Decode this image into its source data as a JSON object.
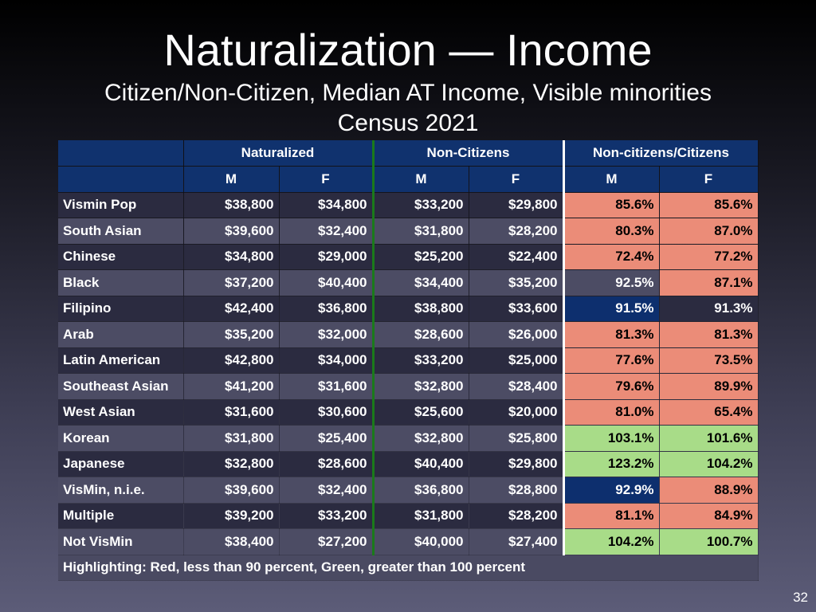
{
  "slide": {
    "title": "Naturalization — Income",
    "subtitle": "Citizen/Non-Citizen, Median AT Income, Visible minorities",
    "census": "Census 2021",
    "page_number": "32"
  },
  "table": {
    "group_headers": [
      "Naturalized",
      "Non-Citizens",
      "Non-citizens/Citizens"
    ],
    "sub_headers": [
      "M",
      "F",
      "M",
      "F",
      "M",
      "F"
    ],
    "rows": [
      {
        "label": "Vismin Pop",
        "nat_m": "$38,800",
        "nat_f": "$34,800",
        "non_m": "$33,200",
        "non_f": "$29,800",
        "ratio_m": "85.6%",
        "ratio_f": "85.6%"
      },
      {
        "label": "South Asian",
        "nat_m": "$39,600",
        "nat_f": "$32,400",
        "non_m": "$31,800",
        "non_f": "$28,200",
        "ratio_m": "80.3%",
        "ratio_f": "87.0%"
      },
      {
        "label": "Chinese",
        "nat_m": "$34,800",
        "nat_f": "$29,000",
        "non_m": "$25,200",
        "non_f": "$22,400",
        "ratio_m": "72.4%",
        "ratio_f": "77.2%"
      },
      {
        "label": "Black",
        "nat_m": "$37,200",
        "nat_f": "$40,400",
        "non_m": "$34,400",
        "non_f": "$35,200",
        "ratio_m": "92.5%",
        "ratio_f": "87.1%"
      },
      {
        "label": "Filipino",
        "nat_m": "$42,400",
        "nat_f": "$36,800",
        "non_m": "$38,800",
        "non_f": "$33,600",
        "ratio_m": "91.5%",
        "ratio_f": "91.3%"
      },
      {
        "label": "Arab",
        "nat_m": "$35,200",
        "nat_f": "$32,000",
        "non_m": "$28,600",
        "non_f": "$26,000",
        "ratio_m": "81.3%",
        "ratio_f": "81.3%"
      },
      {
        "label": "Latin American",
        "nat_m": "$42,800",
        "nat_f": "$34,000",
        "non_m": "$33,200",
        "non_f": "$25,000",
        "ratio_m": "77.6%",
        "ratio_f": "73.5%"
      },
      {
        "label": "Southeast Asian",
        "nat_m": "$41,200",
        "nat_f": "$31,600",
        "non_m": "$32,800",
        "non_f": "$28,400",
        "ratio_m": "79.6%",
        "ratio_f": "89.9%"
      },
      {
        "label": "West Asian",
        "nat_m": "$31,600",
        "nat_f": "$30,600",
        "non_m": "$25,600",
        "non_f": "$20,000",
        "ratio_m": "81.0%",
        "ratio_f": "65.4%"
      },
      {
        "label": "Korean",
        "nat_m": "$31,800",
        "nat_f": "$25,400",
        "non_m": "$32,800",
        "non_f": "$25,800",
        "ratio_m": "103.1%",
        "ratio_f": "101.6%"
      },
      {
        "label": "Japanese",
        "nat_m": "$32,800",
        "nat_f": "$28,600",
        "non_m": "$40,400",
        "non_f": "$29,800",
        "ratio_m": "123.2%",
        "ratio_f": "104.2%"
      },
      {
        "label": "VisMin, n.i.e.",
        "nat_m": "$39,600",
        "nat_f": "$32,400",
        "non_m": "$36,800",
        "non_f": "$28,800",
        "ratio_m": "92.9%",
        "ratio_f": "88.9%"
      },
      {
        "label": "Multiple",
        "nat_m": "$39,200",
        "nat_f": "$33,200",
        "non_m": "$31,800",
        "non_f": "$28,200",
        "ratio_m": "81.1%",
        "ratio_f": "84.9%"
      },
      {
        "label": "Not VisMin",
        "nat_m": "$38,400",
        "nat_f": "$27,200",
        "non_m": "$40,000",
        "non_f": "$27,400",
        "ratio_m": "104.2%",
        "ratio_f": "100.7%"
      }
    ],
    "footer_note": "Highlighting: Red, less than 90 percent, Green, greater than 100 percent"
  },
  "colors": {
    "header_blue": "#10326e",
    "highlight_red": "#eb8c78",
    "highlight_green": "#a8dc88",
    "highlight_blue": "#0d2f6e",
    "divider_green": "#1a7a1a",
    "divider_white": "#ffffff"
  }
}
